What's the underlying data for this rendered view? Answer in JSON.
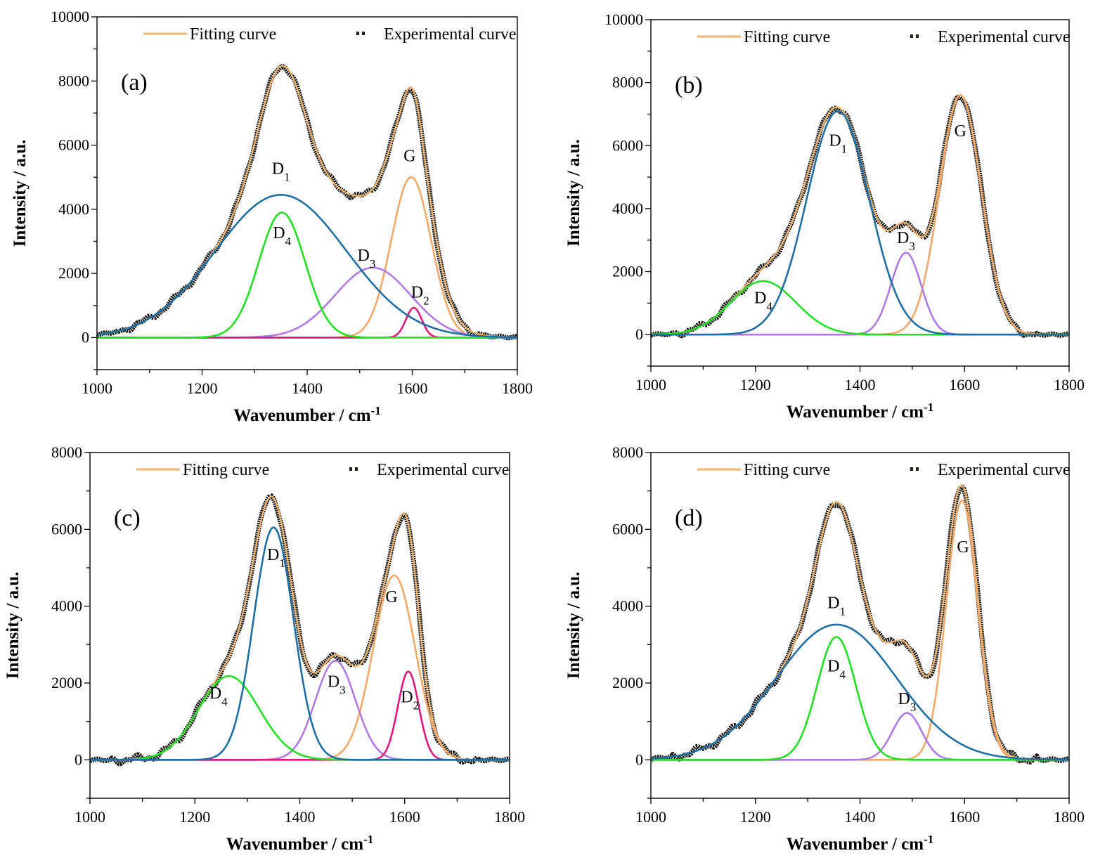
{
  "figure": {
    "xlabel": "Wavenumber / cm",
    "xlabel_sup": "-1",
    "ylabel": "Intensity / a.u.",
    "legend": {
      "fit": "Fitting curve",
      "exp": "Experimental curve"
    }
  },
  "colors": {
    "experimental": "#1e1a16",
    "fit": "#f0b46e",
    "D1": "#1f6fa5",
    "D2": "#e6177a",
    "D3": "#b07ae6",
    "D4": "#22e022",
    "G": "#f4a86a"
  },
  "chart_data": [
    {
      "type": "line",
      "label": "(a)",
      "xlim": [
        1000,
        1800
      ],
      "ylim": [
        -1000,
        10000
      ],
      "xticks": [
        1000,
        1200,
        1400,
        1600,
        1800
      ],
      "yticks": [
        0,
        2000,
        4000,
        6000,
        8000,
        10000
      ],
      "peaks": [
        {
          "name": "D1",
          "center": 1350,
          "height": 4450,
          "width": 125,
          "label_x": 1350,
          "label_y": 5100
        },
        {
          "name": "D4",
          "center": 1352,
          "height": 3900,
          "width": 44,
          "label_x": 1352,
          "label_y": 3100
        },
        {
          "name": "D3",
          "center": 1525,
          "height": 2180,
          "width": 72,
          "label_x": 1513,
          "label_y": 2400
        },
        {
          "name": "G",
          "center": 1598,
          "height": 5000,
          "width": 38,
          "label_x": 1595,
          "label_y": 5500
        },
        {
          "name": "D2",
          "center": 1603,
          "height": 930,
          "width": 15,
          "label_x": 1615,
          "label_y": 1250
        }
      ]
    },
    {
      "type": "line",
      "label": "(b)",
      "xlim": [
        1000,
        1800
      ],
      "ylim": [
        -1000,
        10000
      ],
      "xticks": [
        1000,
        1200,
        1400,
        1600,
        1800
      ],
      "yticks": [
        0,
        2000,
        4000,
        6000,
        8000,
        10000
      ],
      "peaks": [
        {
          "name": "D1",
          "center": 1358,
          "height": 7100,
          "width": 60,
          "label_x": 1358,
          "label_y": 6000
        },
        {
          "name": "D4",
          "center": 1215,
          "height": 1700,
          "width": 62,
          "label_x": 1215,
          "label_y": 1000
        },
        {
          "name": "D3",
          "center": 1488,
          "height": 2600,
          "width": 29,
          "label_x": 1488,
          "label_y": 2900
        },
        {
          "name": "G",
          "center": 1592,
          "height": 7600,
          "width": 40,
          "label_x": 1592,
          "label_y": 6300
        }
      ]
    },
    {
      "type": "line",
      "label": "(c)",
      "xlim": [
        1000,
        1800
      ],
      "ylim": [
        -1000,
        8000
      ],
      "xticks": [
        1000,
        1200,
        1400,
        1600,
        1800
      ],
      "yticks": [
        0,
        2000,
        4000,
        6000,
        8000
      ],
      "peaks": [
        {
          "name": "D1",
          "center": 1350,
          "height": 6050,
          "width": 38,
          "label_x": 1355,
          "label_y": 5200
        },
        {
          "name": "D4",
          "center": 1265,
          "height": 2180,
          "width": 58,
          "label_x": 1245,
          "label_y": 1600
        },
        {
          "name": "D3",
          "center": 1468,
          "height": 2580,
          "width": 38,
          "label_x": 1470,
          "label_y": 1900
        },
        {
          "name": "G",
          "center": 1580,
          "height": 4800,
          "width": 40,
          "label_x": 1575,
          "label_y": 4100
        },
        {
          "name": "D2",
          "center": 1607,
          "height": 2300,
          "width": 20,
          "label_x": 1610,
          "label_y": 1500
        }
      ]
    },
    {
      "type": "line",
      "label": "(d)",
      "xlim": [
        1000,
        1800
      ],
      "ylim": [
        -1000,
        8000
      ],
      "xticks": [
        1000,
        1200,
        1400,
        1600,
        1800
      ],
      "yticks": [
        0,
        2000,
        4000,
        6000,
        8000
      ],
      "peaks": [
        {
          "name": "D1",
          "center": 1355,
          "height": 3520,
          "width": 115,
          "label_x": 1355,
          "label_y": 3950
        },
        {
          "name": "D4",
          "center": 1355,
          "height": 3200,
          "width": 37,
          "label_x": 1355,
          "label_y": 2300
        },
        {
          "name": "D3",
          "center": 1490,
          "height": 1220,
          "width": 28,
          "label_x": 1490,
          "label_y": 1450
        },
        {
          "name": "G",
          "center": 1595,
          "height": 6750,
          "width": 30,
          "label_x": 1597,
          "label_y": 5400
        }
      ]
    }
  ]
}
